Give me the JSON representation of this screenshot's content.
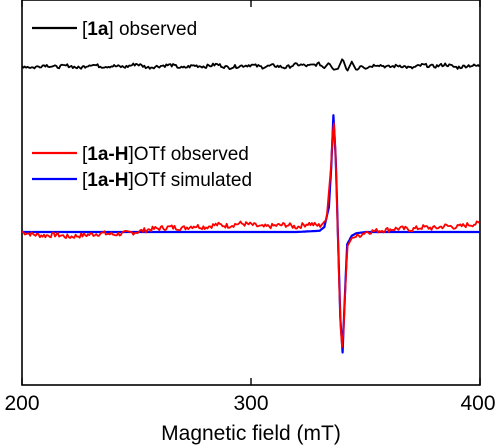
{
  "chart_data": {
    "type": "line",
    "xlabel": "Magnetic field (mT)",
    "ylabel": "",
    "xlim": [
      200,
      400
    ],
    "xticks": [
      200,
      300,
      400
    ],
    "x_tick_labels": [
      "200",
      "300",
      "400"
    ],
    "y_ticks": "none",
    "grid": false,
    "legend_placement": "inline, left of each trace",
    "series": [
      {
        "key": "top",
        "legend_prefix": "[",
        "legend_bold": "1a",
        "legend_suffix": "] observed",
        "color": "#000000",
        "description_units": "arbitrary intensity, stacked offset",
        "noise_amplitude": 6,
        "x": [
          200,
          205,
          210,
          215,
          220,
          225,
          230,
          235,
          240,
          245,
          250,
          255,
          260,
          265,
          270,
          275,
          280,
          285,
          290,
          295,
          300,
          305,
          310,
          315,
          320,
          325,
          330,
          332,
          334,
          336,
          338,
          340,
          342,
          344,
          346,
          348,
          350,
          355,
          360,
          365,
          370,
          375,
          380,
          385,
          390,
          395,
          400
        ],
        "y": [
          100,
          97,
          102,
          98,
          101,
          96,
          103,
          99,
          100,
          98,
          104,
          97,
          100,
          102,
          96,
          101,
          99,
          103,
          97,
          100,
          102,
          98,
          101,
          97,
          103,
          100,
          104,
          96,
          106,
          93,
          95,
          114,
          90,
          108,
          92,
          102,
          97,
          103,
          98,
          101,
          96,
          102,
          99,
          103,
          97,
          101,
          100
        ]
      },
      {
        "key": "observed",
        "legend_prefix": "[",
        "legend_bold": "1a-H",
        "legend_suffix": "]OTf observed",
        "color": "#ff0000",
        "description_units": "arbitrary intensity, stacked offset",
        "noise_amplitude": 4,
        "x": [
          200,
          205,
          210,
          215,
          220,
          225,
          230,
          235,
          240,
          245,
          250,
          255,
          260,
          265,
          270,
          275,
          280,
          285,
          290,
          295,
          300,
          305,
          310,
          315,
          320,
          325,
          330,
          333,
          335,
          336,
          337,
          338,
          339,
          340,
          341,
          342,
          344,
          346,
          348,
          350,
          355,
          360,
          365,
          370,
          375,
          380,
          385,
          390,
          395,
          400
        ],
        "y": [
          0,
          -2,
          -3,
          -2,
          -4,
          -3,
          -2,
          -1,
          -2,
          -1,
          0,
          2,
          3,
          4,
          3,
          5,
          4,
          6,
          5,
          7,
          6,
          4,
          5,
          6,
          4,
          7,
          5,
          10,
          55,
          95,
          62,
          -8,
          -75,
          -98,
          -55,
          -12,
          -5,
          -4,
          -2,
          0,
          1,
          2,
          3,
          2,
          4,
          3,
          5,
          4,
          6,
          7
        ]
      },
      {
        "key": "simulated",
        "legend_prefix": "[",
        "legend_bold": "1a-H",
        "legend_suffix": "]OTf simulated",
        "color": "#0000ff",
        "description_units": "arbitrary intensity, stacked offset",
        "noise_amplitude": 0,
        "x": [
          200,
          320,
          330,
          332,
          334,
          335,
          336,
          337,
          338,
          339,
          340,
          341,
          342,
          344,
          346,
          350,
          360,
          400
        ],
        "y": [
          0,
          0,
          1,
          4,
          20,
          52,
          95,
          60,
          -5,
          -70,
          -98,
          -52,
          -10,
          -3,
          -1,
          0,
          0,
          0
        ]
      }
    ]
  }
}
